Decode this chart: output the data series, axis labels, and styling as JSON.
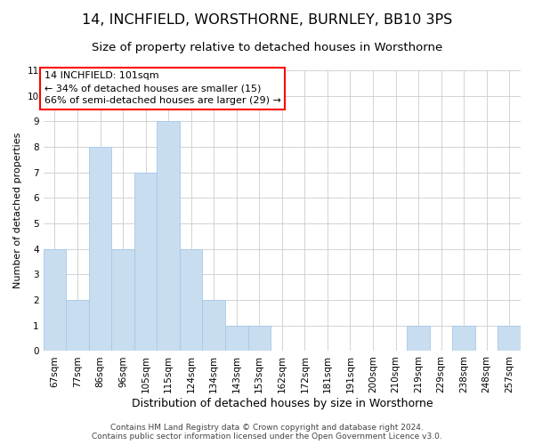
{
  "title": "14, INCHFIELD, WORSTHORNE, BURNLEY, BB10 3PS",
  "subtitle": "Size of property relative to detached houses in Worsthorne",
  "xlabel": "Distribution of detached houses by size in Worsthorne",
  "ylabel": "Number of detached properties",
  "bar_labels": [
    "67sqm",
    "77sqm",
    "86sqm",
    "96sqm",
    "105sqm",
    "115sqm",
    "124sqm",
    "134sqm",
    "143sqm",
    "153sqm",
    "162sqm",
    "172sqm",
    "181sqm",
    "191sqm",
    "200sqm",
    "210sqm",
    "219sqm",
    "229sqm",
    "238sqm",
    "248sqm",
    "257sqm"
  ],
  "bar_values": [
    4,
    2,
    8,
    4,
    7,
    9,
    4,
    2,
    1,
    1,
    0,
    0,
    0,
    0,
    0,
    0,
    1,
    0,
    1,
    0,
    1
  ],
  "bar_color": "#c8ddf0",
  "bar_edge_color": "#a8c8e8",
  "ylim": [
    0,
    11
  ],
  "yticks": [
    0,
    1,
    2,
    3,
    4,
    5,
    6,
    7,
    8,
    9,
    10,
    11
  ],
  "annotation_line1": "14 INCHFIELD: 101sqm",
  "annotation_line2": "← 34% of detached houses are smaller (15)",
  "annotation_line3": "66% of semi-detached houses are larger (29) →",
  "footnote1": "Contains HM Land Registry data © Crown copyright and database right 2024.",
  "footnote2": "Contains public sector information licensed under the Open Government Licence v3.0.",
  "grid_color": "#cccccc",
  "background_color": "#ffffff",
  "title_fontsize": 11.5,
  "subtitle_fontsize": 9.5,
  "xlabel_fontsize": 9,
  "ylabel_fontsize": 8,
  "tick_fontsize": 7.5,
  "annotation_fontsize": 8,
  "footnote_fontsize": 6.5
}
